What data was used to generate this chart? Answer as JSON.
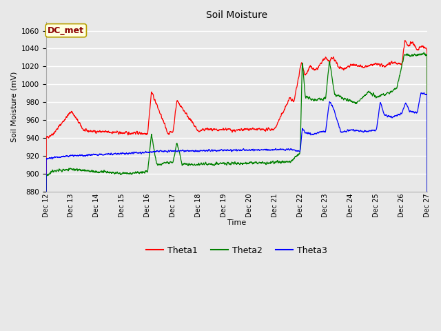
{
  "title": "Soil Moisture",
  "ylabel": "Soil Moisture (mV)",
  "xlabel": "Time",
  "annotation": "DC_met",
  "ylim": [
    880,
    1070
  ],
  "xlim": [
    0,
    15
  ],
  "bg_color": "#e8e8e8",
  "plot_bg_color": "#e8e8e8",
  "grid_color": "white",
  "colors": {
    "Theta1": "red",
    "Theta2": "green",
    "Theta3": "blue"
  },
  "legend_labels": [
    "Theta1",
    "Theta2",
    "Theta3"
  ],
  "x_ticks": [
    0,
    1,
    2,
    3,
    4,
    5,
    6,
    7,
    8,
    9,
    10,
    11,
    12,
    13,
    14,
    15
  ],
  "x_tick_labels": [
    "Dec 12",
    "Dec 13",
    "Dec 14",
    "Dec 15",
    "Dec 16",
    "Dec 17",
    "Dec 18",
    "Dec 19",
    "Dec 20",
    "Dec 21",
    "Dec 22",
    "Dec 23",
    "Dec 24",
    "Dec 25",
    "Dec 26",
    "Dec 27"
  ],
  "yticks": [
    880,
    900,
    920,
    940,
    960,
    980,
    1000,
    1020,
    1040,
    1060
  ],
  "figsize": [
    6.4,
    4.8
  ],
  "dpi": 100
}
